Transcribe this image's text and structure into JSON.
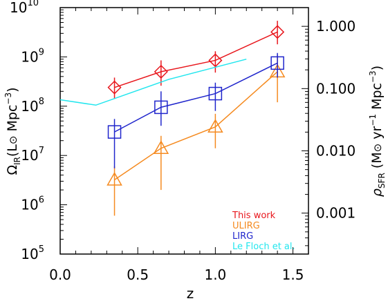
{
  "chart_data": {
    "type": "scatter",
    "xlabel": "z",
    "ylabel_left": "Ω_IR(L⊙ Mpc⁻³)",
    "ylabel_right": "ρ_SFR (M⊙ yr⁻¹ Mpc⁻³)",
    "xlim": [
      0.0,
      1.6
    ],
    "ylim_left": [
      100000,
      10000000000
    ],
    "ylim_right": [
      0.00022,
      2.0
    ],
    "y_scale": "log",
    "x_ticks": [
      "0.0",
      "0.5",
      "1.0",
      "1.5"
    ],
    "y_left_ticks": [
      {
        "value": 100000,
        "base": "10",
        "exp": "5"
      },
      {
        "value": 1000000,
        "base": "10",
        "exp": "6"
      },
      {
        "value": 10000000,
        "base": "10",
        "exp": "7"
      },
      {
        "value": 100000000,
        "base": "10",
        "exp": "8"
      },
      {
        "value": 1000000000,
        "base": "10",
        "exp": "9"
      },
      {
        "value": 10000000000,
        "base": "10",
        "exp": "10"
      }
    ],
    "y_right_ticks": [
      {
        "value": 0.001,
        "label": "0.001"
      },
      {
        "value": 0.01,
        "label": "0.010"
      },
      {
        "value": 0.1,
        "label": "0.100"
      },
      {
        "value": 1.0,
        "label": "1.000"
      }
    ],
    "grid": false,
    "legend_position": "bottom-right",
    "series": [
      {
        "name": "This work",
        "color": "#e8161c",
        "marker": "diamond",
        "points": [
          {
            "x": 0.35,
            "y": 240000000,
            "ylo": 140000000,
            "yhi": 380000000
          },
          {
            "x": 0.65,
            "y": 500000000,
            "ylo": 260000000,
            "yhi": 850000000
          },
          {
            "x": 1.0,
            "y": 850000000,
            "ylo": 480000000,
            "yhi": 1300000000
          },
          {
            "x": 1.4,
            "y": 3200000000,
            "ylo": 1800000000,
            "yhi": 5400000000
          }
        ]
      },
      {
        "name": "ULIRG",
        "color": "#f58a1f",
        "marker": "triangle",
        "points": [
          {
            "x": 0.35,
            "y": 3200000,
            "ylo": 600000,
            "yhi": 6000000
          },
          {
            "x": 0.65,
            "y": 14000000,
            "ylo": 2000000,
            "yhi": 25000000
          },
          {
            "x": 1.0,
            "y": 38000000,
            "ylo": 14000000,
            "yhi": 70000000
          },
          {
            "x": 1.4,
            "y": 500000000,
            "ylo": 120000000,
            "yhi": 1100000000
          }
        ]
      },
      {
        "name": "LIRG",
        "color": "#1f25cc",
        "marker": "square",
        "points": [
          {
            "x": 0.35,
            "y": 30000000,
            "ylo": 5500000,
            "yhi": 55000000
          },
          {
            "x": 0.65,
            "y": 95000000,
            "ylo": 40000000,
            "yhi": 200000000
          },
          {
            "x": 1.0,
            "y": 180000000,
            "ylo": 80000000,
            "yhi": 300000000
          },
          {
            "x": 1.4,
            "y": 750000000,
            "ylo": 380000000,
            "yhi": 1200000000
          }
        ]
      },
      {
        "name": "Le Floch et al.",
        "color": "#22e6ee",
        "marker": "none",
        "points": [
          {
            "x": 0.0,
            "y": 135000000
          },
          {
            "x": 0.23,
            "y": 105000000
          },
          {
            "x": 0.7,
            "y": 350000000
          },
          {
            "x": 1.2,
            "y": 900000000
          }
        ]
      }
    ]
  }
}
